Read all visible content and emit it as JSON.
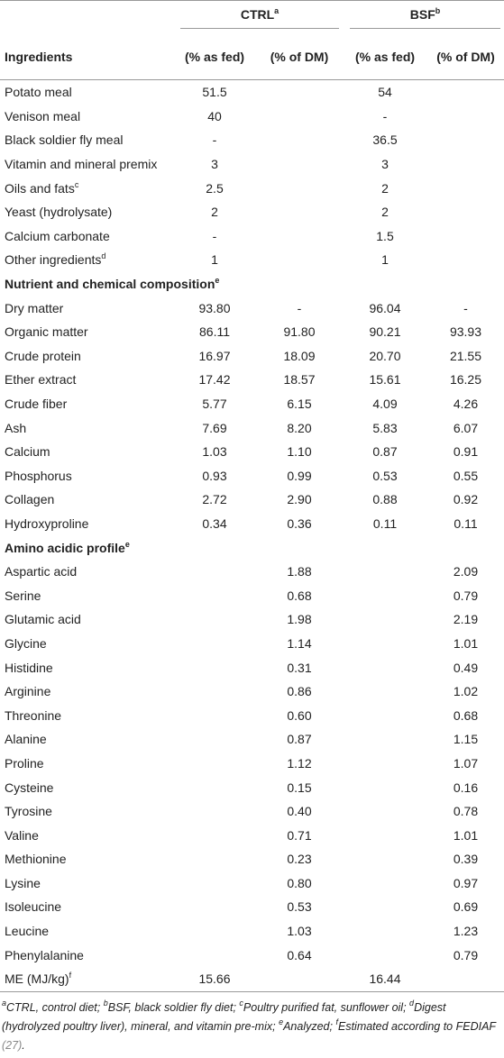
{
  "table": {
    "groups": [
      {
        "label": "CTRL",
        "sup": "a"
      },
      {
        "label": "BSF",
        "sup": "b"
      }
    ],
    "columns": [
      "Ingredients",
      "(% as fed)",
      "(% of DM)",
      "(% as fed)",
      "(% of DM)"
    ],
    "rows": [
      {
        "label": "Potato meal",
        "cells": [
          "51.5",
          null,
          "54",
          null
        ]
      },
      {
        "label": "Venison meal",
        "cells": [
          "40",
          null,
          "-",
          null
        ]
      },
      {
        "label": "Black soldier fly meal",
        "cells": [
          "-",
          null,
          "36.5",
          null
        ]
      },
      {
        "label": "Vitamin and mineral premix",
        "cells": [
          "3",
          null,
          "3",
          null
        ]
      },
      {
        "label": "Oils and fats",
        "sup": "c",
        "cells": [
          "2.5",
          null,
          "2",
          null
        ]
      },
      {
        "label": "Yeast (hydrolysate)",
        "cells": [
          "2",
          null,
          "2",
          null
        ]
      },
      {
        "label": "Calcium carbonate",
        "cells": [
          "-",
          null,
          "1.5",
          null
        ]
      },
      {
        "label": "Other ingredients",
        "sup": "d",
        "cells": [
          "1",
          null,
          "1",
          null
        ]
      },
      {
        "section": "Nutrient and chemical composition",
        "sup": "e"
      },
      {
        "label": "Dry matter",
        "cells": [
          "93.80",
          "-",
          "96.04",
          "-"
        ]
      },
      {
        "label": "Organic matter",
        "cells": [
          "86.11",
          "91.80",
          "90.21",
          "93.93"
        ]
      },
      {
        "label": "Crude protein",
        "cells": [
          "16.97",
          "18.09",
          "20.70",
          "21.55"
        ]
      },
      {
        "label": "Ether extract",
        "cells": [
          "17.42",
          "18.57",
          "15.61",
          "16.25"
        ]
      },
      {
        "label": "Crude fiber",
        "cells": [
          "5.77",
          "6.15",
          "4.09",
          "4.26"
        ]
      },
      {
        "label": "Ash",
        "cells": [
          "7.69",
          "8.20",
          "5.83",
          "6.07"
        ]
      },
      {
        "label": "Calcium",
        "cells": [
          "1.03",
          "1.10",
          "0.87",
          "0.91"
        ]
      },
      {
        "label": "Phosphorus",
        "cells": [
          "0.93",
          "0.99",
          "0.53",
          "0.55"
        ]
      },
      {
        "label": "Collagen",
        "cells": [
          "2.72",
          "2.90",
          "0.88",
          "0.92"
        ]
      },
      {
        "label": "Hydroxyproline",
        "cells": [
          "0.34",
          "0.36",
          "0.11",
          "0.11"
        ]
      },
      {
        "section": "Amino acidic profile",
        "sup": "e"
      },
      {
        "label": "Aspartic acid",
        "cells": [
          null,
          "1.88",
          null,
          "2.09"
        ]
      },
      {
        "label": "Serine",
        "cells": [
          null,
          "0.68",
          null,
          "0.79"
        ]
      },
      {
        "label": "Glutamic acid",
        "cells": [
          null,
          "1.98",
          null,
          "2.19"
        ]
      },
      {
        "label": "Glycine",
        "cells": [
          null,
          "1.14",
          null,
          "1.01"
        ]
      },
      {
        "label": "Histidine",
        "cells": [
          null,
          "0.31",
          null,
          "0.49"
        ]
      },
      {
        "label": "Arginine",
        "cells": [
          null,
          "0.86",
          null,
          "1.02"
        ]
      },
      {
        "label": "Threonine",
        "cells": [
          null,
          "0.60",
          null,
          "0.68"
        ]
      },
      {
        "label": "Alanine",
        "cells": [
          null,
          "0.87",
          null,
          "1.15"
        ]
      },
      {
        "label": "Proline",
        "cells": [
          null,
          "1.12",
          null,
          "1.07"
        ]
      },
      {
        "label": "Cysteine",
        "cells": [
          null,
          "0.15",
          null,
          "0.16"
        ]
      },
      {
        "label": "Tyrosine",
        "cells": [
          null,
          "0.40",
          null,
          "0.78"
        ]
      },
      {
        "label": "Valine",
        "cells": [
          null,
          "0.71",
          null,
          "1.01"
        ]
      },
      {
        "label": "Methionine",
        "cells": [
          null,
          "0.23",
          null,
          "0.39"
        ]
      },
      {
        "label": "Lysine",
        "cells": [
          null,
          "0.80",
          null,
          "0.97"
        ]
      },
      {
        "label": "Isoleucine",
        "cells": [
          null,
          "0.53",
          null,
          "0.69"
        ]
      },
      {
        "label": "Leucine",
        "cells": [
          null,
          "1.03",
          null,
          "1.23"
        ]
      },
      {
        "label": "Phenylalanine",
        "cells": [
          null,
          "0.64",
          null,
          "0.79"
        ]
      },
      {
        "label": "ME (MJ/kg)",
        "sup": "f",
        "cells": [
          "15.66",
          null,
          "16.44",
          null
        ]
      }
    ]
  },
  "footnotes": [
    {
      "sup": "a",
      "text": "CTRL, control diet;"
    },
    {
      "sup": "b",
      "text": "BSF, black soldier fly diet;"
    },
    {
      "sup": "c",
      "text": "Poultry purified fat, sunflower oil;"
    },
    {
      "sup": "d",
      "text": "Digest (hydrolyzed poultry liver), mineral, and vitamin pre-mix;"
    },
    {
      "sup": "e",
      "text": "Analyzed;"
    },
    {
      "sup": "f",
      "text": "Estimated according to FEDIAF",
      "ref": "(27)",
      "end": "."
    }
  ]
}
